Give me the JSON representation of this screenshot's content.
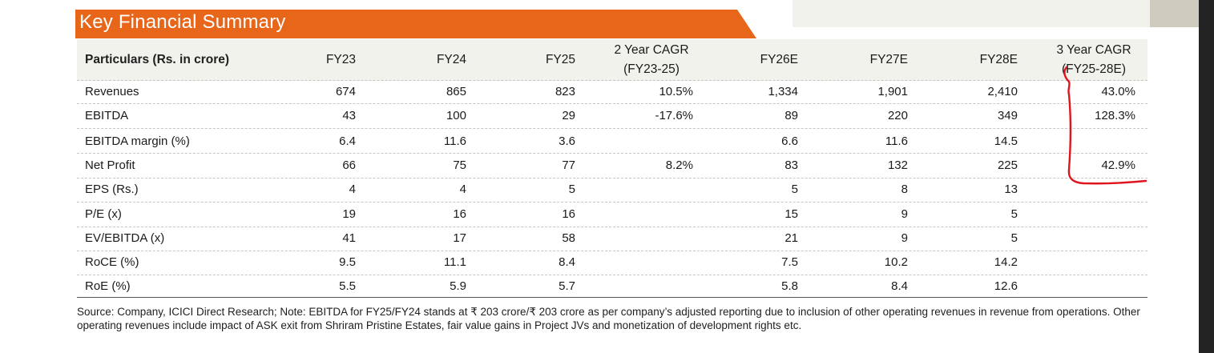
{
  "title": "Key Financial Summary",
  "table": {
    "columns": [
      {
        "label": "Particulars (Rs. in crore)"
      },
      {
        "label": "FY23"
      },
      {
        "label": "FY24"
      },
      {
        "label": "FY25"
      },
      {
        "label": "2 Year CAGR",
        "label2": "(FY23-25)"
      },
      {
        "label": "FY26E"
      },
      {
        "label": "FY27E"
      },
      {
        "label": "FY28E"
      },
      {
        "label": "3 Year CAGR",
        "label2": "(FY25-28E)"
      }
    ],
    "rows": [
      {
        "label": "Revenues",
        "values": [
          "674",
          "865",
          "823",
          "10.5%",
          "1,334",
          "1,901",
          "2,410",
          "43.0%"
        ]
      },
      {
        "label": "EBITDA",
        "values": [
          "43",
          "100",
          "29",
          "-17.6%",
          "89",
          "220",
          "349",
          "128.3%"
        ]
      },
      {
        "label": "EBITDA margin (%)",
        "values": [
          "6.4",
          "11.6",
          "3.6",
          "",
          "6.6",
          "11.6",
          "14.5",
          ""
        ]
      },
      {
        "label": "Net Profit",
        "values": [
          "66",
          "75",
          "77",
          "8.2%",
          "83",
          "132",
          "225",
          "42.9%"
        ]
      },
      {
        "label": "EPS (Rs.)",
        "values": [
          "4",
          "4",
          "5",
          "",
          "5",
          "8",
          "13",
          ""
        ]
      },
      {
        "label": "P/E (x)",
        "values": [
          "19",
          "16",
          "16",
          "",
          "15",
          "9",
          "5",
          ""
        ]
      },
      {
        "label": "EV/EBITDA (x)",
        "values": [
          "41",
          "17",
          "58",
          "",
          "21",
          "9",
          "5",
          ""
        ]
      },
      {
        "label": "RoCE (%)",
        "values": [
          "9.5",
          "11.1",
          "8.4",
          "",
          "7.5",
          "10.2",
          "14.2",
          ""
        ]
      },
      {
        "label": "RoE (%)",
        "values": [
          "5.5",
          "5.9",
          "5.7",
          "",
          "5.8",
          "8.4",
          "12.6",
          ""
        ]
      }
    ]
  },
  "source_note": "Source: Company, ICICI Direct Research; Note: EBITDA for FY25/FY24 stands at ₹ 203 crore/₹ 203 crore as per company’s adjusted reporting due to inclusion of other operating revenues in revenue from operations. Other operating revenues include impact of ASK exit from Shriram Pristine Estates, fair value gains in Project JVs and monetization of development rights etc.",
  "colors": {
    "title_bar": "#e8661a",
    "header_bg": "#f2f2ec",
    "annotation": "#e0141e"
  }
}
